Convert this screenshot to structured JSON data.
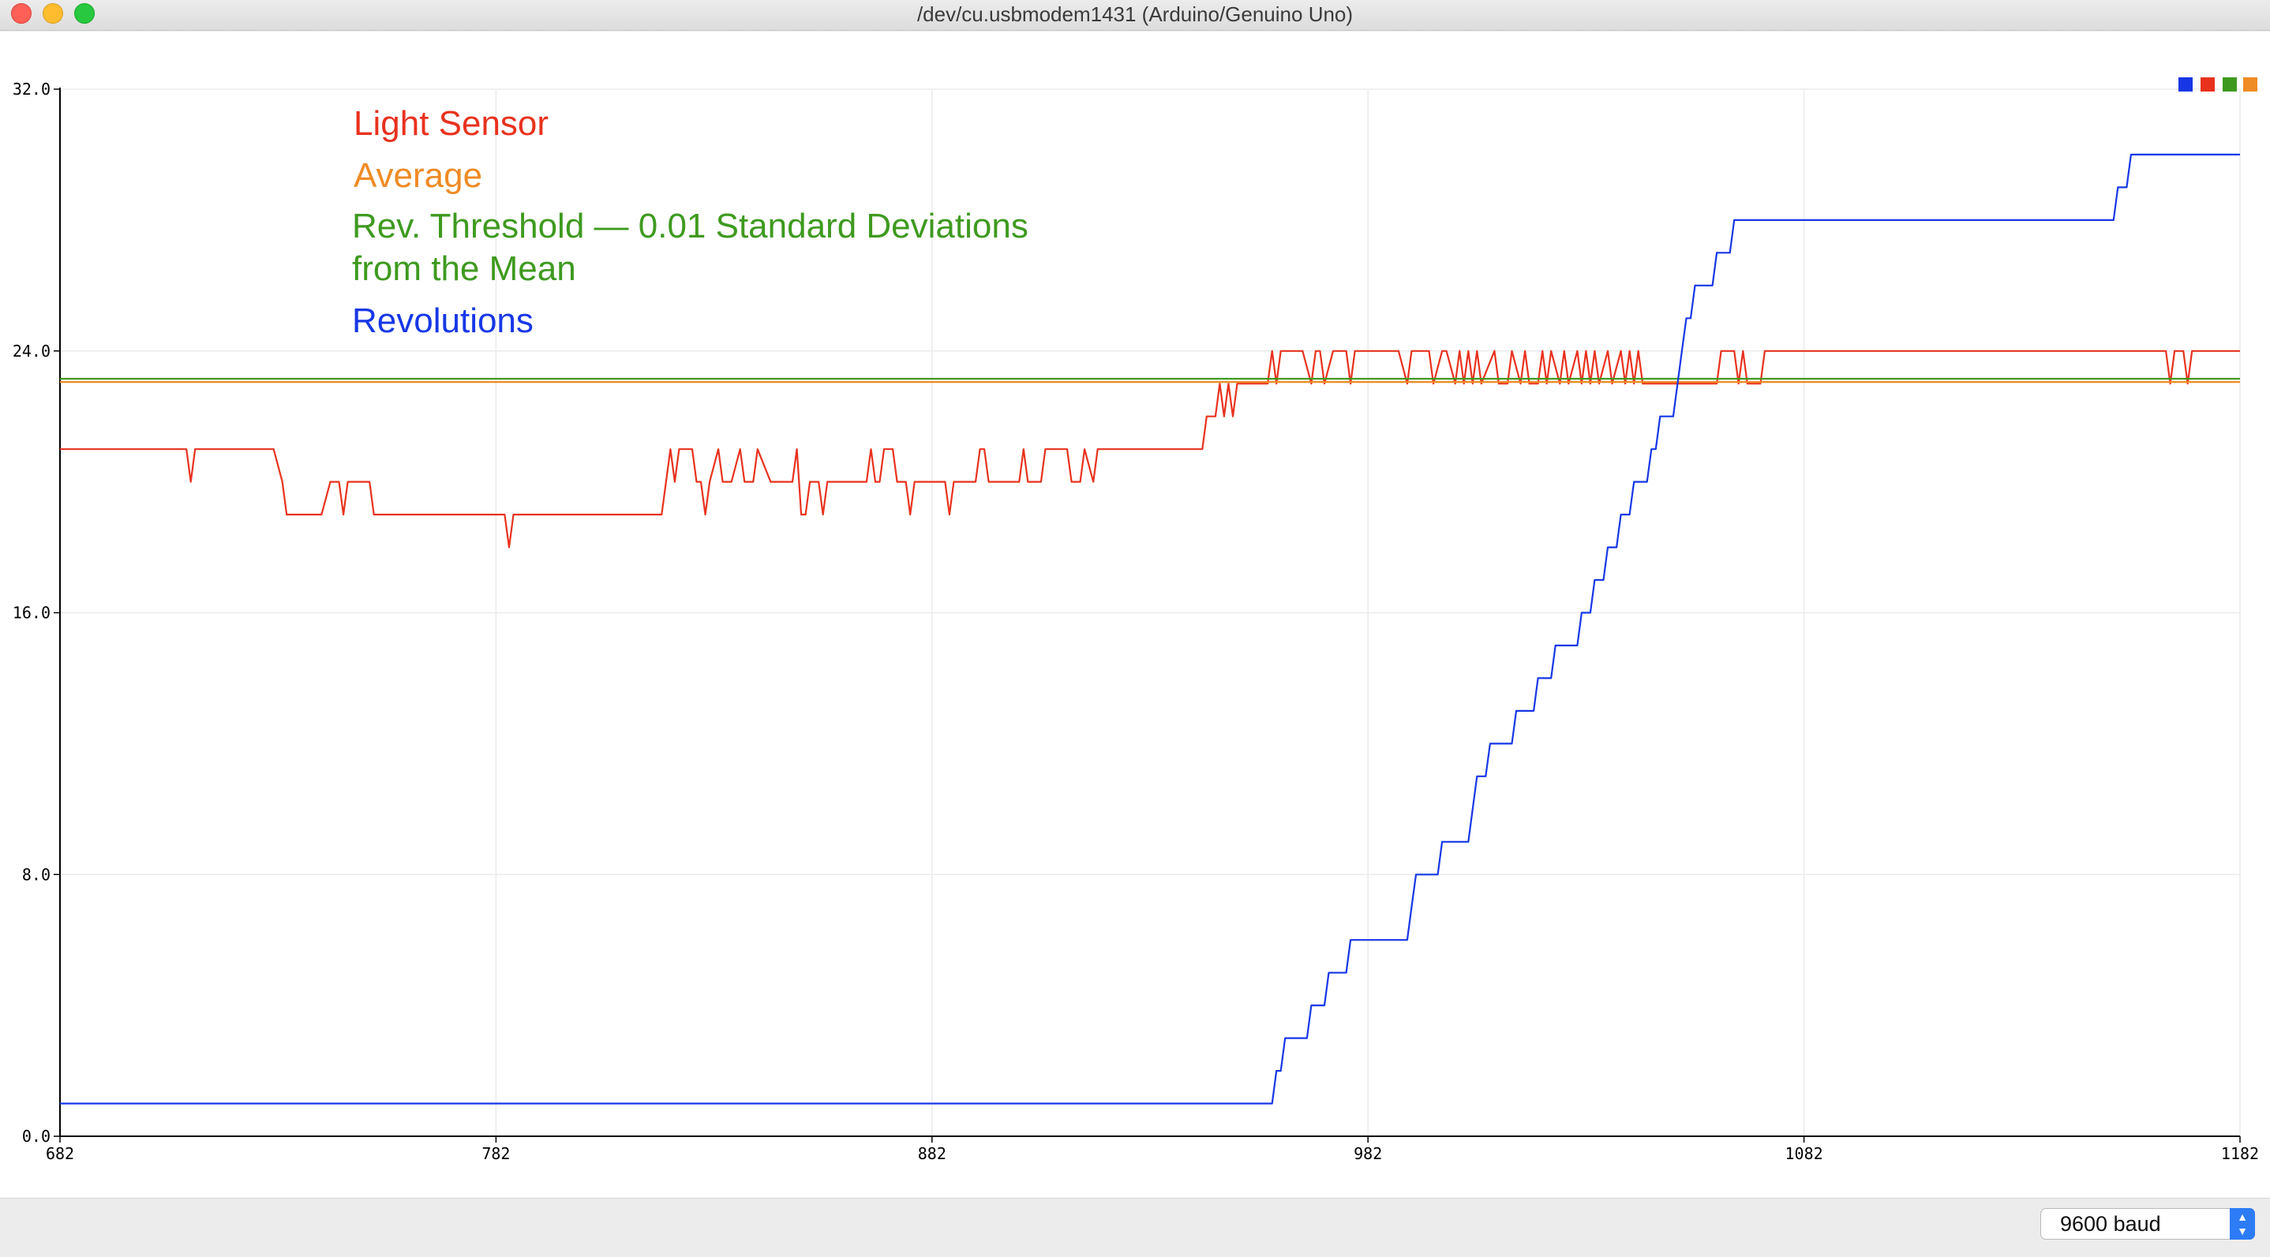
{
  "window": {
    "title": "/dev/cu.usbmodem1431 (Arduino/Genuino Uno)"
  },
  "legend": {
    "light": "Light Sensor",
    "average": "Average",
    "threshold_line1": "Rev. Threshold — 0.01 Standard Deviations",
    "threshold_line2": "from the Mean",
    "revolutions": "Revolutions"
  },
  "baud": {
    "value": "9600 baud"
  },
  "colors": {
    "blue": "#1737e6",
    "red": "#e8321e",
    "green": "#3e9a1f",
    "orange": "#ef8b25"
  },
  "chart_data": {
    "type": "line",
    "xlim": [
      682,
      1182
    ],
    "ylim": [
      0,
      32
    ],
    "xticks": [
      "682",
      "782",
      "882",
      "982",
      "1082",
      "1182"
    ],
    "yticks": [
      "0.0",
      "8.0",
      "16.0",
      "24.0",
      "32.0"
    ],
    "grid": true,
    "legend_position": "top-right",
    "series": [
      {
        "name": "Light Sensor",
        "color": "#e8321e",
        "points": [
          [
            682,
            21
          ],
          [
            711,
            21
          ],
          [
            712,
            20
          ],
          [
            713,
            21
          ],
          [
            731,
            21
          ],
          [
            733,
            20
          ],
          [
            734,
            19
          ],
          [
            742,
            19
          ],
          [
            744,
            20
          ],
          [
            746,
            20
          ],
          [
            747,
            19
          ],
          [
            748,
            20
          ],
          [
            753,
            20
          ],
          [
            754,
            19
          ],
          [
            784,
            19
          ],
          [
            785,
            18
          ],
          [
            786,
            19
          ],
          [
            820,
            19
          ],
          [
            822,
            21
          ],
          [
            823,
            20
          ],
          [
            824,
            21
          ],
          [
            827,
            21
          ],
          [
            828,
            20
          ],
          [
            829,
            20
          ],
          [
            830,
            19
          ],
          [
            831,
            20
          ],
          [
            833,
            21
          ],
          [
            834,
            20
          ],
          [
            836,
            20
          ],
          [
            838,
            21
          ],
          [
            839,
            20
          ],
          [
            841,
            20
          ],
          [
            842,
            21
          ],
          [
            845,
            20
          ],
          [
            850,
            20
          ],
          [
            851,
            21
          ],
          [
            852,
            19
          ],
          [
            853,
            19
          ],
          [
            854,
            20
          ],
          [
            856,
            20
          ],
          [
            857,
            19
          ],
          [
            858,
            20
          ],
          [
            860,
            20
          ],
          [
            863,
            20
          ],
          [
            867,
            20
          ],
          [
            868,
            21
          ],
          [
            869,
            20
          ],
          [
            870,
            20
          ],
          [
            871,
            21
          ],
          [
            873,
            21
          ],
          [
            874,
            20
          ],
          [
            876,
            20
          ],
          [
            877,
            19
          ],
          [
            878,
            20
          ],
          [
            885,
            20
          ],
          [
            886,
            19
          ],
          [
            887,
            20
          ],
          [
            892,
            20
          ],
          [
            893,
            21
          ],
          [
            894,
            21
          ],
          [
            895,
            20
          ],
          [
            902,
            20
          ],
          [
            903,
            21
          ],
          [
            904,
            20
          ],
          [
            907,
            20
          ],
          [
            908,
            21
          ],
          [
            913,
            21
          ],
          [
            914,
            20
          ],
          [
            916,
            20
          ],
          [
            917,
            21
          ],
          [
            919,
            20
          ],
          [
            920,
            21
          ],
          [
            944,
            21
          ],
          [
            945,
            22
          ],
          [
            947,
            22
          ],
          [
            948,
            23
          ],
          [
            949,
            22
          ],
          [
            950,
            23
          ],
          [
            951,
            22
          ],
          [
            952,
            23
          ],
          [
            959,
            23
          ],
          [
            960,
            24
          ],
          [
            961,
            23
          ],
          [
            962,
            24
          ],
          [
            967,
            24
          ],
          [
            969,
            23
          ],
          [
            970,
            24
          ],
          [
            971,
            24
          ],
          [
            972,
            23
          ],
          [
            974,
            24
          ],
          [
            977,
            24
          ],
          [
            978,
            23
          ],
          [
            979,
            24
          ],
          [
            989,
            24
          ],
          [
            991,
            23
          ],
          [
            992,
            24
          ],
          [
            996,
            24
          ],
          [
            997,
            23
          ],
          [
            999,
            24
          ],
          [
            1000,
            24
          ],
          [
            1002,
            23
          ],
          [
            1003,
            24
          ],
          [
            1004,
            23
          ],
          [
            1005,
            24
          ],
          [
            1006,
            23
          ],
          [
            1007,
            24
          ],
          [
            1008,
            23
          ],
          [
            1011,
            24
          ],
          [
            1012,
            23
          ],
          [
            1014,
            23
          ],
          [
            1015,
            24
          ],
          [
            1017,
            23
          ],
          [
            1018,
            24
          ],
          [
            1019,
            23
          ],
          [
            1021,
            23
          ],
          [
            1022,
            24
          ],
          [
            1023,
            23
          ],
          [
            1024,
            24
          ],
          [
            1026,
            23
          ],
          [
            1027,
            24
          ],
          [
            1028,
            23
          ],
          [
            1030,
            24
          ],
          [
            1031,
            23
          ],
          [
            1032,
            24
          ],
          [
            1033,
            23
          ],
          [
            1034,
            24
          ],
          [
            1035,
            23
          ],
          [
            1037,
            24
          ],
          [
            1038,
            23
          ],
          [
            1040,
            24
          ],
          [
            1041,
            23
          ],
          [
            1042,
            24
          ],
          [
            1043,
            23
          ],
          [
            1044,
            24
          ],
          [
            1045,
            23
          ],
          [
            1062,
            23
          ],
          [
            1063,
            24
          ],
          [
            1066,
            24
          ],
          [
            1067,
            23
          ],
          [
            1068,
            24
          ],
          [
            1069,
            23
          ],
          [
            1072,
            23
          ],
          [
            1073,
            24
          ],
          [
            1086,
            24
          ],
          [
            1165,
            24
          ],
          [
            1166,
            23
          ],
          [
            1167,
            24
          ],
          [
            1169,
            24
          ],
          [
            1170,
            23
          ],
          [
            1171,
            24
          ],
          [
            1182,
            24
          ]
        ]
      },
      {
        "name": "Average",
        "color": "#ef8b25",
        "points": [
          [
            682,
            23.05
          ],
          [
            1182,
            23.05
          ]
        ]
      },
      {
        "name": "Rev. Threshold — 0.01 Standard Deviations from the Mean",
        "color": "#3e9a1f",
        "points": [
          [
            682,
            23.15
          ],
          [
            1182,
            23.15
          ]
        ]
      },
      {
        "name": "Revolutions",
        "color": "#1737e6",
        "points": [
          [
            682,
            1
          ],
          [
            960,
            1
          ],
          [
            961,
            2
          ],
          [
            962,
            2
          ],
          [
            963,
            3
          ],
          [
            968,
            3
          ],
          [
            969,
            4
          ],
          [
            972,
            4
          ],
          [
            973,
            5
          ],
          [
            977,
            5
          ],
          [
            978,
            6
          ],
          [
            991,
            6
          ],
          [
            992,
            7
          ],
          [
            993,
            8
          ],
          [
            998,
            8
          ],
          [
            999,
            9
          ],
          [
            1005,
            9
          ],
          [
            1006,
            10
          ],
          [
            1007,
            11
          ],
          [
            1009,
            11
          ],
          [
            1010,
            12
          ],
          [
            1015,
            12
          ],
          [
            1016,
            13
          ],
          [
            1020,
            13
          ],
          [
            1021,
            14
          ],
          [
            1024,
            14
          ],
          [
            1025,
            15
          ],
          [
            1030,
            15
          ],
          [
            1031,
            16
          ],
          [
            1033,
            16
          ],
          [
            1034,
            17
          ],
          [
            1036,
            17
          ],
          [
            1037,
            18
          ],
          [
            1039,
            18
          ],
          [
            1040,
            19
          ],
          [
            1042,
            19
          ],
          [
            1043,
            20
          ],
          [
            1046,
            20
          ],
          [
            1047,
            21
          ],
          [
            1048,
            21
          ],
          [
            1049,
            22
          ],
          [
            1052,
            22
          ],
          [
            1053,
            23
          ],
          [
            1054,
            24
          ],
          [
            1055,
            25
          ],
          [
            1056,
            25
          ],
          [
            1057,
            26
          ],
          [
            1061,
            26
          ],
          [
            1062,
            27
          ],
          [
            1065,
            27
          ],
          [
            1066,
            28
          ],
          [
            1070,
            28
          ],
          [
            1071,
            28
          ],
          [
            1153,
            28
          ],
          [
            1154,
            29
          ],
          [
            1156,
            29
          ],
          [
            1157,
            30
          ],
          [
            1182,
            30
          ]
        ]
      }
    ]
  }
}
